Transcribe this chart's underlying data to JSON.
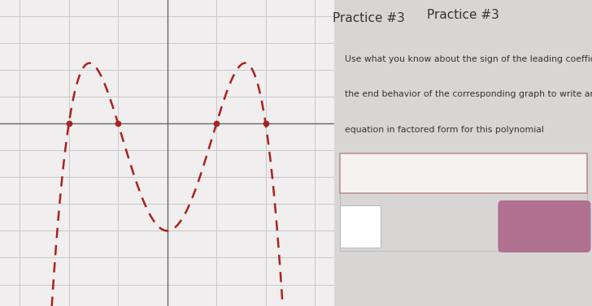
{
  "title": "Practice #3",
  "instruction_text": "Use what you know about the sign of the leading coefficient and\nthe end behavior of the corresponding graph to write an\nequation in factored form for this polynomial",
  "graph_bg": "#f0eeee",
  "right_panel_bg": "#e8e5e5",
  "outer_bg": "#d8d5d5",
  "curve_color": "#aa2222",
  "grid_color": "#c8c8c8",
  "axis_color": "#666666",
  "xlim": [
    -3.4,
    3.4
  ],
  "ylim": [
    -6.8,
    4.6
  ],
  "xticks": [
    -3,
    -2,
    -1,
    0,
    1,
    2,
    3
  ],
  "yticks": [
    -6,
    -5,
    -4,
    -3,
    -2,
    -1,
    1,
    2,
    3,
    4
  ],
  "zeros": [
    -2,
    -1,
    1,
    2
  ],
  "leading_coeff": -1,
  "submit_btn_color": "#b07090",
  "submit_text_color": "#ffffff",
  "input_border_color": "#c09090",
  "text_color": "#333333",
  "title_color": "#333333",
  "graph_split": 0.565
}
